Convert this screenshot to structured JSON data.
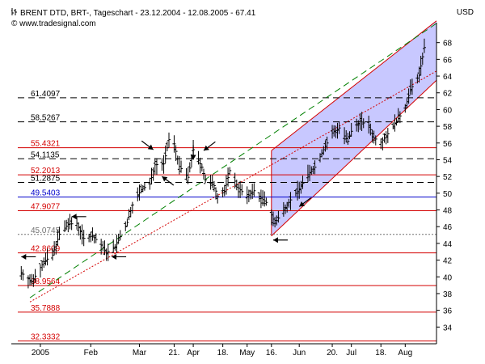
{
  "header": {
    "title_icon": "chart-icon",
    "title": "BRENT DTD, BRT-, Tageschart - 23.12.2004 - 12.08.2005 - 67.41",
    "copyright_icon": "copyright-icon",
    "copyright": "www.tradesignal.com",
    "unit": "USD"
  },
  "chart_data": {
    "type": "ohlc",
    "title": "BRENT DTD, BRT-, Tageschart - 23.12.2004 - 12.08.2005 - 67.41",
    "ylabel": "USD",
    "ylim": [
      32,
      70
    ],
    "y_ticks": [
      34,
      36,
      38,
      40,
      42,
      44,
      46,
      48,
      50,
      52,
      54,
      56,
      58,
      60,
      62,
      64,
      66,
      68
    ],
    "x_ticks": [
      {
        "label": "2005",
        "date": "2005-01-03"
      },
      {
        "label": "Feb",
        "date": "2005-02-01"
      },
      {
        "label": "Mar",
        "date": "2005-03-01"
      },
      {
        "label": "21.",
        "date": "2005-03-21"
      },
      {
        "label": "Apr",
        "date": "2005-04-01"
      },
      {
        "label": "18.",
        "date": "2005-04-18"
      },
      {
        "label": "May",
        "date": "2005-05-02"
      },
      {
        "label": "16.",
        "date": "2005-05-16"
      },
      {
        "label": "Jun",
        "date": "2005-06-01"
      },
      {
        "label": "20.",
        "date": "2005-06-20"
      },
      {
        "label": "Jul",
        "date": "2005-07-01"
      },
      {
        "label": "18.",
        "date": "2005-07-18"
      },
      {
        "label": "Aug",
        "date": "2005-08-01"
      }
    ],
    "grid": false,
    "price_path": [
      [
        "2004-12-23",
        40.5
      ],
      [
        "2004-12-29",
        39.4
      ],
      [
        "2005-01-05",
        41.8
      ],
      [
        "2005-01-10",
        42.6
      ],
      [
        "2005-01-14",
        45.1
      ],
      [
        "2005-01-19",
        46.3
      ],
      [
        "2005-01-24",
        46.4
      ],
      [
        "2005-01-28",
        44.6
      ],
      [
        "2005-02-02",
        44.9
      ],
      [
        "2005-02-07",
        43.8
      ],
      [
        "2005-02-10",
        42.9
      ],
      [
        "2005-02-15",
        43.5
      ],
      [
        "2005-02-18",
        44.8
      ],
      [
        "2005-02-22",
        46.5
      ],
      [
        "2005-02-25",
        48.6
      ],
      [
        "2005-03-02",
        50.4
      ],
      [
        "2005-03-07",
        51.1
      ],
      [
        "2005-03-10",
        53.4
      ],
      [
        "2005-03-15",
        53.5
      ],
      [
        "2005-03-18",
        56.4
      ],
      [
        "2005-03-21",
        55.9
      ],
      [
        "2005-03-24",
        53.2
      ],
      [
        "2005-03-29",
        51.9
      ],
      [
        "2005-04-01",
        55.2
      ],
      [
        "2005-04-06",
        53.1
      ],
      [
        "2005-04-08",
        51.6
      ],
      [
        "2005-04-13",
        50.9
      ],
      [
        "2005-04-15",
        49.6
      ],
      [
        "2005-04-19",
        50.2
      ],
      [
        "2005-04-22",
        52.7
      ],
      [
        "2005-04-27",
        50.6
      ],
      [
        "2005-05-02",
        49.6
      ],
      [
        "2005-05-06",
        50.3
      ],
      [
        "2005-05-10",
        49.4
      ],
      [
        "2005-05-13",
        48.9
      ],
      [
        "2005-05-18",
        46.4
      ],
      [
        "2005-05-24",
        48.3
      ],
      [
        "2005-05-27",
        49.2
      ],
      [
        "2005-06-01",
        50.5
      ],
      [
        "2005-06-06",
        52.2
      ],
      [
        "2005-06-10",
        53.1
      ],
      [
        "2005-06-15",
        55.2
      ],
      [
        "2005-06-20",
        57.2
      ],
      [
        "2005-06-24",
        57.8
      ],
      [
        "2005-06-29",
        56.2
      ],
      [
        "2005-07-01",
        57.4
      ],
      [
        "2005-07-06",
        58.6
      ],
      [
        "2005-07-11",
        58.1
      ],
      [
        "2005-07-14",
        56.6
      ],
      [
        "2005-07-18",
        56.1
      ],
      [
        "2005-07-22",
        57.1
      ],
      [
        "2005-07-27",
        58.6
      ],
      [
        "2005-08-01",
        60.2
      ],
      [
        "2005-08-04",
        62.4
      ],
      [
        "2005-08-09",
        64.1
      ],
      [
        "2005-08-12",
        67.41
      ]
    ],
    "horizontal_levels": [
      {
        "value": 61.4097,
        "label": "61.4097",
        "style": "dashed",
        "color": "#000000"
      },
      {
        "value": 58.5267,
        "label": "58.5267",
        "style": "dashed",
        "color": "#000000"
      },
      {
        "value": 55.4321,
        "label": "55.4321",
        "style": "solid",
        "color": "#d40000"
      },
      {
        "value": 54.1135,
        "label": "54.1135",
        "style": "dashed",
        "color": "#000000"
      },
      {
        "value": 52.2013,
        "label": "52.2013",
        "style": "solid",
        "color": "#d40000"
      },
      {
        "value": 51.2875,
        "label": "51.2875",
        "style": "dashed",
        "color": "#000000"
      },
      {
        "value": 49.5403,
        "label": "49.5403",
        "style": "solid",
        "color": "#0000cc"
      },
      {
        "value": 47.9077,
        "label": "47.9077",
        "style": "solid",
        "color": "#d40000"
      },
      {
        "value": 45.0745,
        "label": "45.0745",
        "style": "dotted",
        "color": "#707070"
      },
      {
        "value": 42.8609,
        "label": "42.8609",
        "style": "solid",
        "color": "#d40000"
      },
      {
        "value": 38.9564,
        "label": "38.9564",
        "style": "solid",
        "color": "#d40000"
      },
      {
        "value": 35.7888,
        "label": "35.7888",
        "style": "solid",
        "color": "#d40000"
      },
      {
        "value": 32.3332,
        "label": "32.3332",
        "style": "solid",
        "color": "#d40000"
      }
    ],
    "trendlines": [
      {
        "style": "dashed",
        "color": "#008000",
        "points": [
          [
            "2004-12-28",
            37.5
          ],
          [
            "2005-08-19",
            70.3
          ]
        ]
      },
      {
        "style": "dotted",
        "color": "#d40000",
        "points": [
          [
            "2004-12-28",
            37.0
          ],
          [
            "2005-08-19",
            64.6
          ]
        ]
      }
    ],
    "channel": {
      "fill": "#c8c8ff",
      "color": "#d40000",
      "upper": [
        [
          "2005-05-16",
          55.1
        ],
        [
          "2005-08-19",
          70.6
        ]
      ],
      "lower": [
        [
          "2005-05-16",
          44.9
        ],
        [
          "2005-08-19",
          63.5
        ]
      ]
    },
    "arrows": [
      {
        "date": "2004-12-23",
        "value": 42.4,
        "direction": "left"
      },
      {
        "date": "2005-01-21",
        "value": 47.2,
        "direction": "left"
      },
      {
        "date": "2005-02-13",
        "value": 42.4,
        "direction": "left"
      },
      {
        "date": "2005-03-09",
        "value": 55.2,
        "direction": "down-right"
      },
      {
        "date": "2005-03-14",
        "value": 52.0,
        "direction": "up-left"
      },
      {
        "date": "2005-04-01",
        "value": 54.0,
        "direction": "down"
      },
      {
        "date": "2005-04-07",
        "value": 55.1,
        "direction": "down-left"
      },
      {
        "date": "2005-05-17",
        "value": 44.4,
        "direction": "left"
      },
      {
        "date": "2005-06-01",
        "value": 48.4,
        "direction": "down-left"
      }
    ]
  }
}
